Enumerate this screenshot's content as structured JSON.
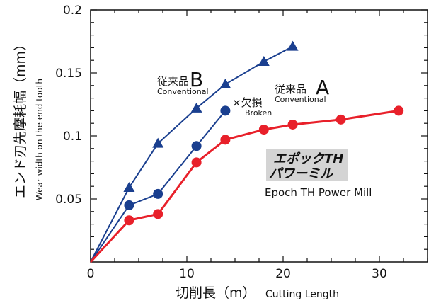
{
  "chart_data": {
    "type": "line",
    "title": "",
    "xlabel": "切削長（m）Cutting Length",
    "xlabel_jp": "切削長（m）",
    "xlabel_en": "Cutting Length",
    "ylabel_jp": "エンド刃先摩耗幅（mm）",
    "ylabel_en": "Wear width on the end tooth",
    "xlim": [
      0,
      35
    ],
    "ylim": [
      0,
      0.2
    ],
    "x_ticks": [
      0,
      10,
      20,
      30
    ],
    "x_tick_labels": [
      "0",
      "10",
      "20",
      "30"
    ],
    "y_ticks": [
      0.05,
      0.1,
      0.15,
      0.2
    ],
    "y_tick_labels": [
      "0.05",
      "0.1",
      "0.15",
      "0.2"
    ],
    "grid": false,
    "series": [
      {
        "name": "従来品B Conventional",
        "label_jp": "従来品",
        "label_letter": "B",
        "label_en": "Conventional",
        "color": "#1a3f8f",
        "marker": "triangle",
        "x": [
          0,
          4,
          7,
          11,
          14,
          18,
          21
        ],
        "y": [
          0,
          0.059,
          0.094,
          0.122,
          0.141,
          0.159,
          0.171
        ]
      },
      {
        "name": "従来品A Conventional",
        "label_jp": "従来品",
        "label_letter": "A",
        "label_en": "Conventional",
        "color": "#1a3f8f",
        "marker": "circle",
        "x": [
          0,
          4,
          7,
          11,
          14
        ],
        "y": [
          0,
          0.045,
          0.054,
          0.092,
          0.12
        ]
      },
      {
        "name": "エポックTHパワーミル Epoch TH Power Mill",
        "label_jp_line1": "エポックTH",
        "label_jp_line2": "パワーミル",
        "label_en": "Epoch TH Power Mill",
        "color": "#e8202a",
        "marker": "circle",
        "x": [
          0,
          4,
          7,
          11,
          14,
          18,
          21,
          26,
          32
        ],
        "y": [
          0,
          0.033,
          0.038,
          0.079,
          0.097,
          0.105,
          0.109,
          0.113,
          0.12
        ]
      }
    ],
    "annotations": [
      {
        "text_jp": "×欠損",
        "text_en": "Broken",
        "series": "従来品A Conventional"
      }
    ]
  },
  "colors": {
    "blue": "#1a3f8f",
    "red": "#e8202a",
    "epoch_box": "#d4d4d4",
    "axis": "#111111"
  }
}
